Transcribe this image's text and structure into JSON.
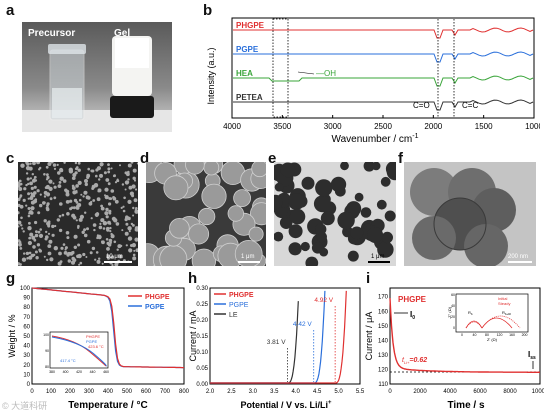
{
  "letters": {
    "a": "a",
    "b": "b",
    "c": "c",
    "d": "d",
    "e": "e",
    "f": "f",
    "g": "g",
    "h": "h",
    "i": "i"
  },
  "panel_a": {
    "left_label": "Precursor",
    "right_label": "Gel"
  },
  "panel_b": {
    "ylabel": "Intensity (a.u.)",
    "xlabel": "Wavenumber / cm",
    "xlabel_sup": "-1",
    "xticks": [
      "4000",
      "3500",
      "3000",
      "2500",
      "2000",
      "1500",
      "1000"
    ],
    "series": [
      "PHGPE",
      "PGPE",
      "HEA",
      "PETEA"
    ],
    "annot_oh": "—OH",
    "annot_co": "C=O",
    "annot_cc": "C=C",
    "colors": {
      "PHGPE": "#e03030",
      "PGPE": "#2a6fdb",
      "HEA": "#3aa53a",
      "PETEA": "#333333"
    }
  },
  "scalebars": {
    "c": "10 μm",
    "d": "1 μm",
    "e": "1 μm",
    "f": "200 nm"
  },
  "panel_g": {
    "ylabel": "Weight / %",
    "xlabel": "Temperature / °C",
    "xticks": [
      "0",
      "100",
      "200",
      "300",
      "400",
      "500",
      "600",
      "700",
      "800"
    ],
    "yticks": [
      "0",
      "10",
      "20",
      "30",
      "40",
      "50",
      "60",
      "70",
      "80",
      "90",
      "100"
    ],
    "legend": [
      "PHGPE",
      "PGPE"
    ],
    "inset_xticks": [
      "380",
      "400",
      "420",
      "440",
      "460"
    ],
    "inset_yticks": [
      "80",
      "90",
      "100"
    ],
    "inset_ann1": "417.4 °C",
    "inset_ann2": "423.6 °C",
    "inset_legend": [
      "PHGPE",
      "PGPE"
    ]
  },
  "panel_h": {
    "ylabel": "Current / mA",
    "xlabel": "Potential / V vs. Li/Li",
    "xlabel_sup": "+",
    "xticks": [
      "2.0",
      "2.5",
      "3.0",
      "3.5",
      "4.0",
      "4.5",
      "5.0",
      "5.5"
    ],
    "yticks": [
      "0.00",
      "0.05",
      "0.10",
      "0.15",
      "0.20",
      "0.25",
      "0.30"
    ],
    "legend": [
      "PHGPE",
      "PGPE",
      "LE"
    ],
    "v1": "3.81 V",
    "v2": "4.42 V",
    "v3": "4.92 V"
  },
  "panel_i": {
    "ylabel": "Current / μA",
    "xlabel": "Time / s",
    "xticks": [
      "0",
      "2000",
      "4000",
      "6000",
      "8000",
      "10000"
    ],
    "yticks": [
      "110",
      "120",
      "130",
      "140",
      "150",
      "160",
      "170"
    ],
    "title": "PHGPE",
    "i0": "I",
    "i0_sub": "0",
    "iss": "I",
    "iss_sub": "ss",
    "tli": "t",
    "tli_sub": "Li+",
    "tli_val": "=0.62",
    "inset_ylabel": "-Z'' (Ω)",
    "inset_xlabel": "Z' (Ω)",
    "inset_xticks": [
      "0",
      "40",
      "80",
      "120",
      "160",
      "200"
    ],
    "inset_yticks": [
      "0",
      "20",
      "40",
      "60"
    ],
    "inset_legend": [
      "Initial",
      "Steady"
    ],
    "inset_rb": "R",
    "inset_rb_sub": "b",
    "inset_rbri": "R",
    "inset_rbri_sub": "b+Ri"
  },
  "watermark": "© 大道科研"
}
